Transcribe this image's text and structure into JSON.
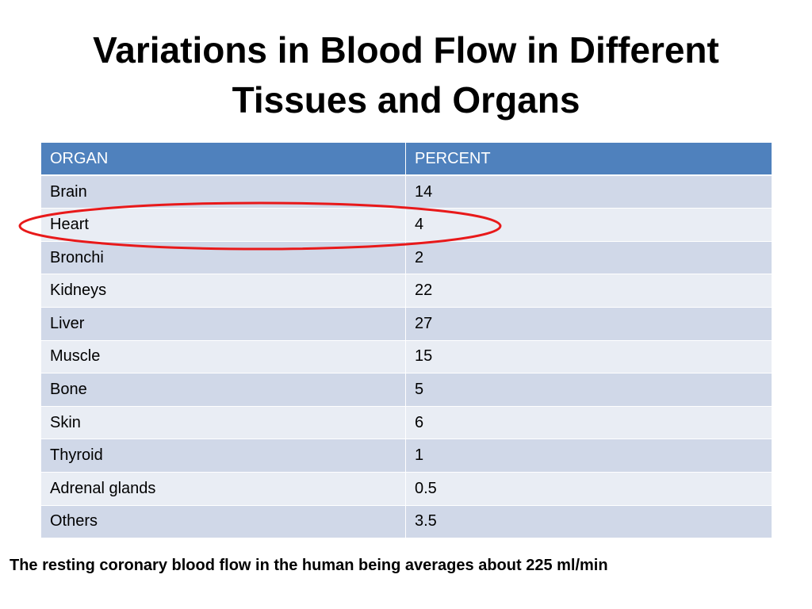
{
  "slide": {
    "title_line1": "Variations in Blood Flow in Different",
    "title_line2": "Tissues and Organs",
    "footnote": "The resting coronary blood flow in the human being averages about 225 ml/min",
    "highlighted_row": "Heart",
    "colors": {
      "header_bg": "#4f81bd",
      "row_odd": "#d0d8e8",
      "row_even": "#e9edf4",
      "highlight": "#e8191a"
    }
  },
  "table": {
    "headers": [
      "ORGAN",
      "PERCENT"
    ],
    "rows": [
      [
        "Brain",
        "14"
      ],
      [
        "Heart",
        "4"
      ],
      [
        "Bronchi",
        "2"
      ],
      [
        "Kidneys",
        "22"
      ],
      [
        "Liver",
        "27"
      ],
      [
        "Muscle",
        "15"
      ],
      [
        "Bone",
        "5"
      ],
      [
        "Skin",
        "6"
      ],
      [
        "Thyroid",
        "1"
      ],
      [
        "Adrenal glands",
        "0.5"
      ],
      [
        "Others",
        "3.5"
      ]
    ]
  }
}
